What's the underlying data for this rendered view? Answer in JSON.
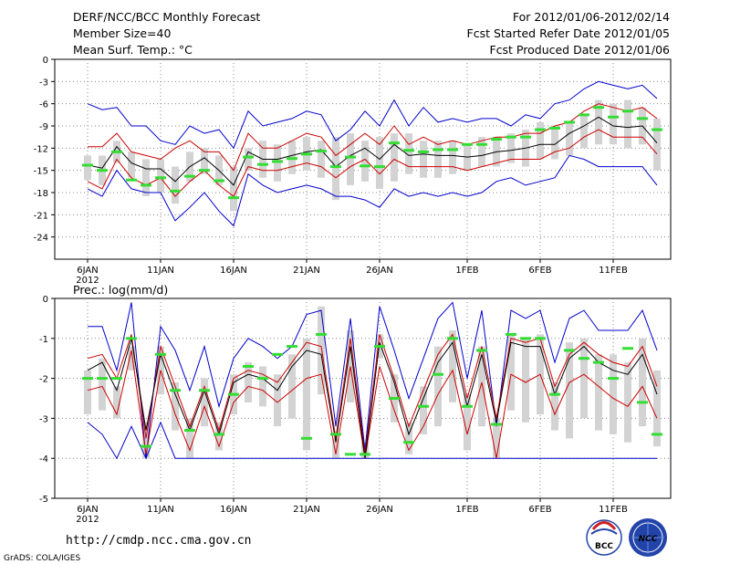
{
  "header": {
    "title": "DERF/NCC/BCC Monthly Forecast",
    "member_size": "Member Size=40",
    "variable": "Mean Surf. Temp.: °C",
    "period": "For 2012/01/06-2012/02/14",
    "started": "Fcst Started Refer Date 2012/01/05",
    "produced": "Fcst Produced Date 2012/01/06"
  },
  "footer": {
    "url": "http://cmdp.ncc.cma.gov.cn",
    "credit": "GrADS: COLA/IGES",
    "logo_bcc": "BCC",
    "logo_ncc": "NCC"
  },
  "colors": {
    "spread": "#0000cc",
    "interval": "#cc0000",
    "mean": "#000000",
    "box": "#d3d3d3",
    "median": "#33dd33",
    "grid": "#888888"
  },
  "x_labels": [
    {
      "day": 0,
      "label": "6JAN",
      "sub": "2012"
    },
    {
      "day": 5,
      "label": "11JAN"
    },
    {
      "day": 10,
      "label": "16JAN"
    },
    {
      "day": 15,
      "label": "21JAN"
    },
    {
      "day": 20,
      "label": "26JAN"
    },
    {
      "day": 26,
      "label": "1FEB"
    },
    {
      "day": 31,
      "label": "6FEB"
    },
    {
      "day": 36,
      "label": "11FEB"
    }
  ],
  "chart_data": [
    {
      "type": "line",
      "title": "",
      "ylabel": "Mean Surf. Temp.: °C",
      "ylim": [
        -27,
        0
      ],
      "yticks": [
        0,
        -3,
        -6,
        -9,
        -12,
        -15,
        -18,
        -21,
        -24
      ],
      "x": "days from 2012/01/06 (0..39)",
      "series": [
        {
          "name": "max",
          "values": [
            -6,
            -6.8,
            -6.5,
            -9,
            -9,
            -11,
            -11.5,
            -9,
            -10,
            -9.5,
            -12,
            -7,
            -9,
            -8.5,
            -8,
            -7,
            -7.5,
            -11,
            -9.5,
            -7,
            -9,
            -5.5,
            -9,
            -6.5,
            -8.5,
            -8,
            -8.5,
            -8,
            -8,
            -9,
            -7.5,
            -8,
            -6,
            -5.5,
            -4,
            -3,
            -3.5,
            -4,
            -3.5,
            -5.3
          ]
        },
        {
          "name": "upper",
          "values": [
            -11.8,
            -11.8,
            -10,
            -12.5,
            -13,
            -13.5,
            -12,
            -11,
            -12.5,
            -12.5,
            -15,
            -10,
            -12,
            -12,
            -11,
            -10,
            -10.5,
            -13,
            -11.5,
            -10,
            -11.5,
            -9,
            -11.5,
            -10.5,
            -11.5,
            -11,
            -11.5,
            -11,
            -10.5,
            -10.5,
            -10,
            -10,
            -9,
            -8.5,
            -7,
            -6,
            -6.5,
            -7,
            -6.5,
            -8
          ]
        },
        {
          "name": "mean",
          "values": [
            -14.3,
            -14.7,
            -11.8,
            -14,
            -14.8,
            -14.8,
            -16.5,
            -14.5,
            -13.3,
            -15,
            -17,
            -12.5,
            -13.5,
            -13.5,
            -13,
            -12.5,
            -12.2,
            -14.5,
            -13,
            -12,
            -13.5,
            -11.5,
            -13,
            -12.8,
            -13,
            -13,
            -13.2,
            -13,
            -12.5,
            -12.3,
            -12,
            -11.5,
            -11.5,
            -10,
            -9,
            -7.8,
            -9,
            -9.2,
            -9,
            -11.3
          ]
        },
        {
          "name": "lower",
          "values": [
            -16.5,
            -17.5,
            -13.5,
            -16,
            -17,
            -16,
            -18.5,
            -16.5,
            -15,
            -17,
            -18.5,
            -14.5,
            -15,
            -15,
            -14.5,
            -14,
            -14.5,
            -16,
            -14.5,
            -13.5,
            -15.5,
            -13.5,
            -14.5,
            -14.5,
            -14.5,
            -14.5,
            -15,
            -14.5,
            -14,
            -13.5,
            -13.5,
            -13.5,
            -12.5,
            -12,
            -10.5,
            -9.5,
            -10.5,
            -10.5,
            -10.5,
            -12.8
          ]
        },
        {
          "name": "min",
          "values": [
            -17.5,
            -18.5,
            -15,
            -17.5,
            -18,
            -18,
            -21.8,
            -20,
            -18,
            -20.5,
            -22.5,
            -15.5,
            -17,
            -18,
            -17.5,
            -17,
            -17.5,
            -18.5,
            -18.5,
            -19,
            -20,
            -17.5,
            -18.5,
            -18,
            -18.5,
            -18,
            -18.5,
            -18,
            -16.5,
            -16,
            -17,
            -16.5,
            -16,
            -13,
            -13.5,
            -14.5,
            -14.5,
            -14.5,
            -14.5,
            -17
          ]
        },
        {
          "name": "box-top",
          "values": [
            -13,
            -13,
            -11,
            -12.5,
            -13.5,
            -13.5,
            -14.5,
            -12.5,
            -12,
            -13,
            -14.5,
            -12,
            -11,
            -11.5,
            -11,
            -10.5,
            -11,
            -10.5,
            -10,
            -11,
            -10.5,
            -10,
            -10,
            -11,
            -11,
            -11,
            -11.5,
            -10.5,
            -10.5,
            -10,
            -9.5,
            -8.5,
            -9,
            -8.5,
            -7.5,
            -5.5,
            -6,
            -5.5,
            -6.5,
            -8
          ]
        },
        {
          "name": "box-bottom",
          "values": [
            -16.3,
            -17,
            -14,
            -16,
            -18.5,
            -18,
            -19.5,
            -16.5,
            -15.5,
            -17,
            -20.5,
            -15,
            -16,
            -16.5,
            -15.5,
            -15,
            -16,
            -19,
            -17,
            -16.5,
            -17.5,
            -16.5,
            -15.5,
            -16,
            -16,
            -15.5,
            -15,
            -14.5,
            -14.5,
            -14,
            -14.5,
            -13.5,
            -13.5,
            -13,
            -12,
            -11.5,
            -11.5,
            -12,
            -11.5,
            -15
          ]
        },
        {
          "name": "median",
          "values": [
            -14.3,
            -15,
            -12.5,
            -16.3,
            -17,
            -16,
            -17.8,
            -15.8,
            -15,
            -16.4,
            -18.7,
            -13.2,
            -14.2,
            -13.8,
            -13.4,
            -12.8,
            -12.4,
            -14.5,
            -13.2,
            -14.4,
            -14.5,
            -11.3,
            -12.3,
            -12.5,
            -12.2,
            -12.2,
            -11.5,
            -11.5,
            -10.8,
            -10.5,
            -10.5,
            -9.5,
            -9.3,
            -8.5,
            -7.5,
            -6.5,
            -7.8,
            -7,
            -8,
            -9.5
          ]
        }
      ]
    },
    {
      "type": "line",
      "title": "Prec.: log(mm/d)",
      "ylabel": "Prec.: log(mm/d)",
      "ylim": [
        -5,
        0
      ],
      "yticks": [
        0,
        -1,
        -2,
        -3,
        -4,
        -5
      ],
      "x": "days from 2012/01/06 (0..39)",
      "series": [
        {
          "name": "max",
          "values": [
            -0.7,
            -0.7,
            -1.8,
            -0.1,
            -4,
            -0.7,
            -1.3,
            -2.3,
            -1.2,
            -2.7,
            -1.5,
            -1.0,
            -1.2,
            -1.5,
            -1.2,
            -0.4,
            -0.3,
            -3.2,
            -0.5,
            -3.8,
            -0.2,
            -1.3,
            -2.5,
            -1.5,
            -0.5,
            -0.1,
            -2.0,
            -0.3,
            -3.2,
            -0.3,
            -0.5,
            -0.3,
            -1.6,
            -0.5,
            -0.3,
            -0.8,
            -0.8,
            -0.8,
            -0.3,
            -1.3
          ]
        },
        {
          "name": "upper",
          "values": [
            -1.5,
            -1.4,
            -2.0,
            -0.9,
            -3.5,
            -1.2,
            -2.2,
            -3.2,
            -2.2,
            -3.3,
            -2.0,
            -1.8,
            -1.9,
            -2.1,
            -1.6,
            -1.1,
            -1.2,
            -3.5,
            -1.0,
            -3.9,
            -0.9,
            -2.0,
            -3.2,
            -2.3,
            -1.4,
            -0.9,
            -2.5,
            -1.2,
            -3.0,
            -1.0,
            -1.1,
            -1.0,
            -2.2,
            -1.4,
            -1.1,
            -1.4,
            -1.6,
            -1.7,
            -1.2,
            -2.2
          ]
        },
        {
          "name": "mean",
          "values": [
            -1.8,
            -1.6,
            -2.3,
            -1.0,
            -3.3,
            -1.4,
            -2.4,
            -3.3,
            -2.3,
            -3.4,
            -2.1,
            -1.9,
            -2.0,
            -2.3,
            -1.7,
            -1.3,
            -1.4,
            -3.6,
            -1.2,
            -4.0,
            -1.1,
            -2.1,
            -3.4,
            -2.5,
            -1.6,
            -1.1,
            -2.7,
            -1.4,
            -3.1,
            -1.1,
            -1.2,
            -1.2,
            -2.4,
            -1.5,
            -1.2,
            -1.6,
            -1.8,
            -1.9,
            -1.4,
            -2.4
          ]
        },
        {
          "name": "lower",
          "values": [
            -2.3,
            -2.2,
            -2.9,
            -1.3,
            -3.9,
            -1.8,
            -2.9,
            -3.8,
            -2.7,
            -3.7,
            -2.6,
            -2.2,
            -2.3,
            -2.6,
            -2.3,
            -2.0,
            -1.9,
            -3.9,
            -1.7,
            -4.0,
            -1.7,
            -2.8,
            -3.8,
            -3.2,
            -2.4,
            -1.8,
            -3.4,
            -2.1,
            -4.0,
            -1.9,
            -2.1,
            -1.9,
            -2.9,
            -2.1,
            -1.9,
            -2.2,
            -2.5,
            -2.7,
            -2.2,
            -3.0
          ]
        },
        {
          "name": "min",
          "values": [
            -3.1,
            -3.4,
            -4,
            -3.2,
            -4,
            -3.1,
            -4,
            -4,
            -4,
            -4,
            -4,
            -4,
            -4,
            -4,
            -4,
            -4,
            -4,
            -4,
            -4,
            -4,
            -4,
            -4,
            -4,
            -4,
            -4,
            -4,
            -4,
            -4,
            -4,
            -4,
            -4,
            -4,
            -4,
            -4,
            -4,
            -4,
            -4,
            -4,
            -4,
            -4
          ]
        },
        {
          "name": "box-top",
          "values": [
            -1.8,
            -1.5,
            -2.2,
            -1.2,
            -3.1,
            -1.2,
            -2.1,
            -3.0,
            -2.0,
            -3.1,
            -1.9,
            -1.6,
            -1.7,
            -1.9,
            -1.4,
            -1.0,
            -0.2,
            -3.5,
            -0.8,
            -3.6,
            -0.9,
            -1.9,
            -3.1,
            -2.2,
            -1.2,
            -0.8,
            -2.4,
            -1.2,
            -3.0,
            -0.9,
            -1.0,
            -0.9,
            -2.1,
            -1.1,
            -1.0,
            -1.4,
            -1.4,
            -1.6,
            -1.0,
            -1.8
          ]
        },
        {
          "name": "box-bottom",
          "values": [
            -2.9,
            -2.8,
            -3.0,
            -1.8,
            -4,
            -2.4,
            -3.3,
            -4,
            -3.2,
            -3.8,
            -2.9,
            -2.6,
            -2.7,
            -3.2,
            -3.0,
            -3.8,
            -2.4,
            -4,
            -2.6,
            -4,
            -1.5,
            -3.1,
            -3.9,
            -3.4,
            -3.2,
            -2.6,
            -3.8,
            -3.2,
            -4,
            -2.8,
            -3.1,
            -2.9,
            -3.3,
            -3.5,
            -3.0,
            -3.3,
            -3.4,
            -3.6,
            -3.2,
            -3.7
          ]
        },
        {
          "name": "median",
          "values": [
            -2.0,
            -2.0,
            -2.0,
            -1.0,
            -3.7,
            -1.4,
            -2.3,
            -3.3,
            -2.3,
            -3.4,
            -2.4,
            -1.7,
            -2.0,
            -1.4,
            -1.2,
            -3.5,
            -0.9,
            -3.4,
            -3.9,
            -3.9,
            -1.2,
            -2.5,
            -3.6,
            -2.7,
            -1.9,
            -1.0,
            -2.7,
            -1.3,
            -3.15,
            -0.9,
            -1.0,
            -1.0,
            -2.4,
            -1.3,
            -1.5,
            -1.6,
            -2.0,
            -1.25,
            -2.6,
            -3.4
          ]
        }
      ]
    }
  ]
}
